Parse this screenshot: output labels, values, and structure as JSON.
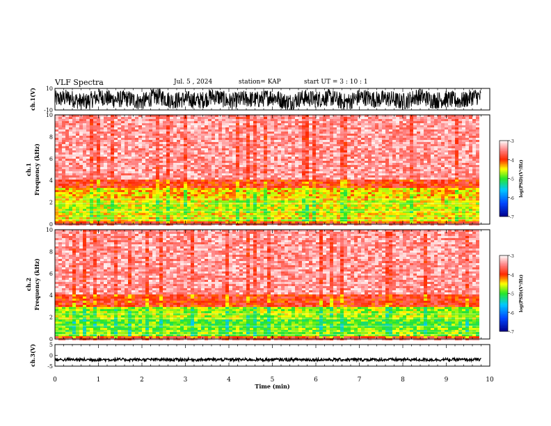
{
  "header": {
    "title": "VLF Spectra",
    "date": "Jul. 5 , 2024",
    "station": "station= KAP",
    "start": "start UT = 3 : 10 : 1"
  },
  "chart_data": [
    {
      "type": "line",
      "panel": "ch1-waveform",
      "ylabel": "ch.1(V)",
      "ylim": [
        -10,
        10
      ],
      "y_ticks": [
        "10",
        "-10"
      ],
      "x_range_min": [
        0,
        10
      ],
      "series": [
        {
          "values": "dense noisy waveform ±10 V spanning 0–9.8 min"
        }
      ]
    },
    {
      "type": "heatmap",
      "panel": "ch1-spectrogram",
      "ylabel": "ch.1 Frequency (kHz)",
      "ylim": [
        0,
        10
      ],
      "y_ticks": [
        "0",
        "2",
        "4",
        "6",
        "8",
        "10"
      ],
      "x_range_min": [
        0,
        9.8
      ],
      "bands": [
        {
          "f_lo": 0.0,
          "f_hi": 0.3,
          "level": -4.0
        },
        {
          "f_lo": 0.3,
          "f_hi": 1.0,
          "level": -4.5
        },
        {
          "f_lo": 1.0,
          "f_hi": 2.2,
          "level": -4.6
        },
        {
          "f_lo": 2.2,
          "f_hi": 3.4,
          "level": -4.4
        },
        {
          "f_lo": 3.4,
          "f_hi": 4.0,
          "level": -3.9
        },
        {
          "f_lo": 4.0,
          "f_hi": 10.0,
          "level": -3.4
        }
      ],
      "colorbar": {
        "label": "log(PSD)(V²/Hz)",
        "ticks": [
          "-3",
          "-4",
          "-5",
          "-6",
          "-7"
        ],
        "range": [
          -7,
          -3
        ]
      }
    },
    {
      "type": "heatmap",
      "panel": "ch2-spectrogram",
      "ylabel": "ch.2 Frequency (kHz)",
      "ylim": [
        0,
        10
      ],
      "y_ticks": [
        "0",
        "2",
        "4",
        "6",
        "8",
        "10"
      ],
      "x_range_min": [
        0,
        9.8
      ],
      "bands": [
        {
          "f_lo": 0.0,
          "f_hi": 0.3,
          "level": -4.0
        },
        {
          "f_lo": 0.3,
          "f_hi": 1.0,
          "level": -4.8
        },
        {
          "f_lo": 1.0,
          "f_hi": 1.8,
          "level": -4.9
        },
        {
          "f_lo": 1.8,
          "f_hi": 3.0,
          "level": -4.7
        },
        {
          "f_lo": 3.0,
          "f_hi": 4.0,
          "level": -3.9
        },
        {
          "f_lo": 4.0,
          "f_hi": 10.0,
          "level": -3.4
        }
      ],
      "colorbar": {
        "label": "log(PSD)(V²/Hz)",
        "ticks": [
          "-3",
          "-4",
          "-5",
          "-6",
          "-7"
        ],
        "range": [
          -7,
          -3
        ]
      }
    },
    {
      "type": "line",
      "panel": "ch3-waveform",
      "ylabel": "ch.3(V)",
      "ylim": [
        -5,
        5
      ],
      "y_ticks": [
        "5",
        "0",
        "-5"
      ],
      "x_range_min": [
        0,
        10
      ],
      "series": [
        {
          "values": "narrow band near -2 V spanning 0–9.8 min"
        }
      ]
    }
  ],
  "x_axis": {
    "label": "Time (min)",
    "ticks": [
      "0",
      "1",
      "2",
      "3",
      "4",
      "5",
      "6",
      "7",
      "8",
      "9",
      "10"
    ],
    "range": [
      0,
      10
    ]
  },
  "colors": {
    "ink": "#000000",
    "background": "#ffffff"
  }
}
